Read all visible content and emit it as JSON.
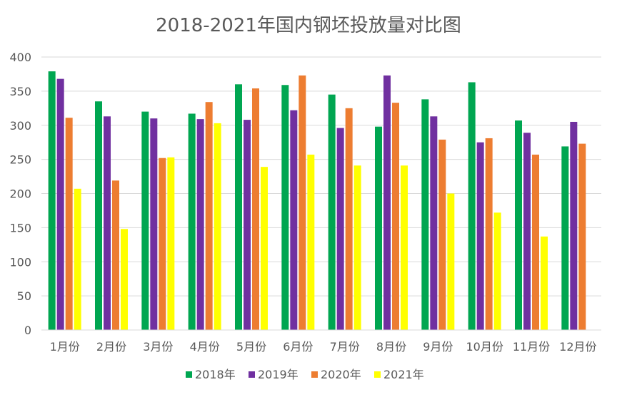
{
  "chart_data": {
    "type": "bar",
    "title": "2018-2021年国内钢坯投放量对比图",
    "xlabel": "",
    "ylabel": "",
    "categories": [
      "1月份",
      "2月份",
      "3月份",
      "4月份",
      "5月份",
      "6月份",
      "7月份",
      "8月份",
      "9月份",
      "10月份",
      "11月份",
      "12月份"
    ],
    "series": [
      {
        "name": "2018年",
        "color": "#00a651",
        "values": [
          379,
          335,
          320,
          317,
          360,
          359,
          345,
          298,
          338,
          363,
          307,
          269
        ]
      },
      {
        "name": "2019年",
        "color": "#7030a0",
        "values": [
          368,
          313,
          310,
          309,
          308,
          322,
          296,
          373,
          313,
          275,
          289,
          305
        ]
      },
      {
        "name": "2020年",
        "color": "#ed7d31",
        "values": [
          311,
          219,
          252,
          334,
          354,
          373,
          325,
          333,
          279,
          281,
          257,
          273
        ]
      },
      {
        "name": "2021年",
        "color": "#ffff00",
        "values": [
          207,
          148,
          253,
          303,
          239,
          257,
          241,
          241,
          200,
          172,
          137,
          null
        ]
      }
    ],
    "ylim": [
      0,
      400
    ],
    "yticks": [
      0,
      50,
      100,
      150,
      200,
      250,
      300,
      350,
      400
    ],
    "grid": true,
    "legend_position": "bottom"
  }
}
